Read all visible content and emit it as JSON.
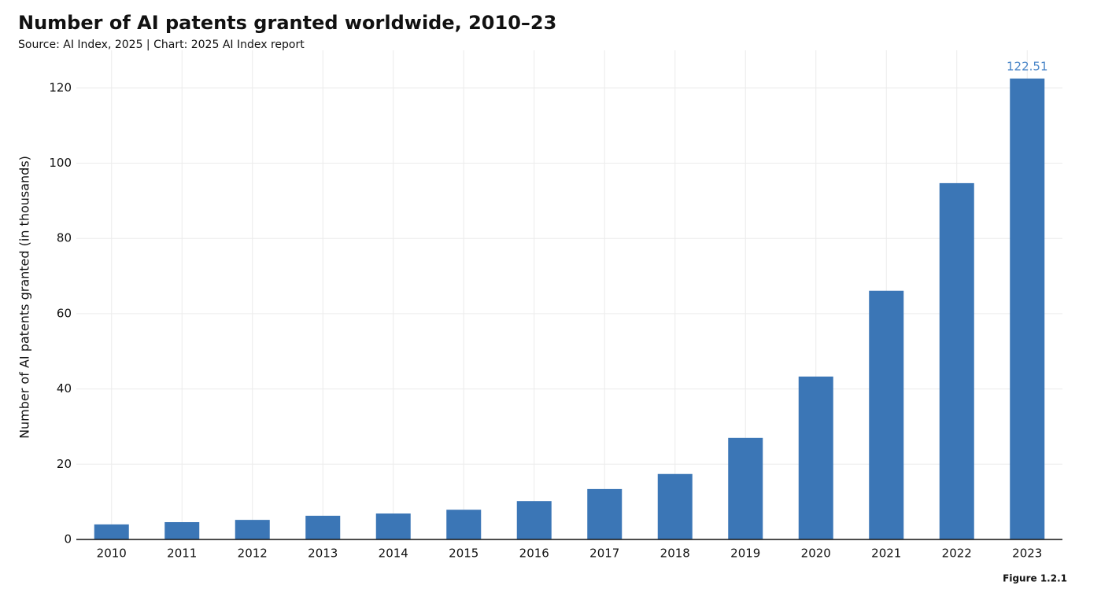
{
  "chart_data": {
    "type": "bar",
    "title": "Number of AI patents granted worldwide, 2010–23",
    "subtitle": "Source: AI Index, 2025 | Chart: 2025 AI Index report",
    "y_label": "Number of AI patents granted (in thousands)",
    "figure_label": "Figure 1.2.1",
    "categories": [
      "2010",
      "2011",
      "2012",
      "2013",
      "2014",
      "2015",
      "2016",
      "2017",
      "2018",
      "2019",
      "2020",
      "2021",
      "2022",
      "2023"
    ],
    "values": [
      4.0,
      4.6,
      5.2,
      6.3,
      6.9,
      7.9,
      10.2,
      13.4,
      17.4,
      27.0,
      43.3,
      66.1,
      94.7,
      122.51
    ],
    "value_labels": [
      null,
      null,
      null,
      null,
      null,
      null,
      null,
      null,
      null,
      null,
      null,
      null,
      null,
      "122.51"
    ],
    "color": "#3b76b6",
    "label_color": "#4a86c8",
    "ylim": [
      0,
      130
    ],
    "yticks": [
      0,
      20,
      40,
      60,
      80,
      100,
      120
    ],
    "grid": true
  }
}
